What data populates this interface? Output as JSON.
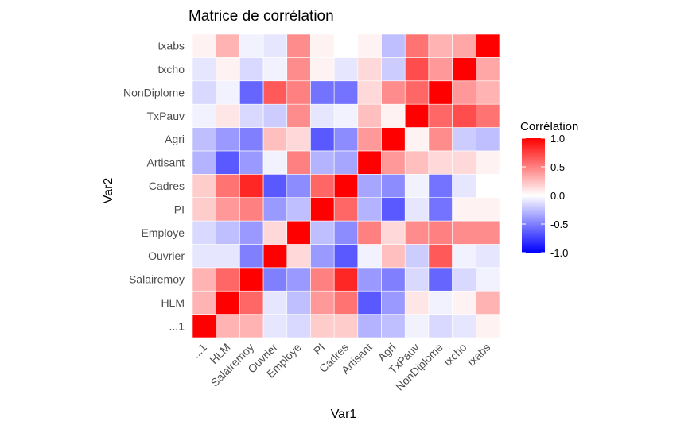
{
  "chart_data": {
    "type": "heatmap",
    "title": "Matrice de corrélation",
    "xlabel": "Var1",
    "ylabel": "Var2",
    "x_categories": [
      "...1",
      "HLM",
      "Salairemoy",
      "Ouvrier",
      "Employe",
      "PI",
      "Cadres",
      "Artisant",
      "Agri",
      "TxPauv",
      "NonDiplome",
      "txcho",
      "txabs"
    ],
    "y_categories": [
      "...1",
      "HLM",
      "Salairemoy",
      "Ouvrier",
      "Employe",
      "PI",
      "Cadres",
      "Artisant",
      "Agri",
      "TxPauv",
      "NonDiplome",
      "txcho",
      "txabs"
    ],
    "values": [
      [
        1.0,
        0.3,
        0.3,
        -0.1,
        -0.15,
        0.2,
        0.2,
        -0.3,
        -0.25,
        -0.05,
        -0.15,
        -0.1,
        0.05
      ],
      [
        0.3,
        1.0,
        0.6,
        -0.1,
        -0.25,
        0.4,
        0.55,
        -0.65,
        -0.4,
        0.1,
        -0.05,
        0.05,
        0.3
      ],
      [
        0.3,
        0.6,
        1.0,
        -0.5,
        -0.4,
        0.5,
        0.85,
        -0.4,
        -0.5,
        -0.15,
        -0.6,
        -0.15,
        -0.05
      ],
      [
        -0.1,
        -0.1,
        -0.5,
        1.0,
        0.15,
        -0.4,
        -0.65,
        -0.05,
        0.25,
        -0.2,
        0.65,
        -0.05,
        -0.1
      ],
      [
        -0.15,
        -0.25,
        -0.4,
        0.15,
        1.0,
        -0.25,
        -0.45,
        0.5,
        0.15,
        0.45,
        0.5,
        0.45,
        0.45
      ],
      [
        0.2,
        0.4,
        0.5,
        -0.4,
        -0.25,
        1.0,
        0.6,
        -0.3,
        -0.65,
        -0.1,
        -0.55,
        0.05,
        0.05
      ],
      [
        0.2,
        0.55,
        0.85,
        -0.65,
        -0.45,
        0.6,
        1.0,
        -0.35,
        -0.45,
        -0.05,
        -0.55,
        -0.1,
        0.0
      ],
      [
        -0.3,
        -0.65,
        -0.4,
        -0.05,
        0.5,
        -0.3,
        -0.35,
        1.0,
        0.4,
        0.25,
        0.15,
        0.15,
        0.05
      ],
      [
        -0.25,
        -0.4,
        -0.5,
        0.25,
        0.15,
        -0.65,
        -0.45,
        0.4,
        1.0,
        0.05,
        0.45,
        -0.2,
        -0.25
      ],
      [
        -0.05,
        0.1,
        -0.15,
        -0.2,
        0.45,
        -0.1,
        -0.05,
        0.25,
        0.05,
        1.0,
        0.6,
        0.7,
        0.55
      ],
      [
        -0.15,
        -0.05,
        -0.6,
        0.65,
        0.5,
        -0.55,
        -0.55,
        0.15,
        0.45,
        0.6,
        1.0,
        0.4,
        0.3
      ],
      [
        -0.1,
        0.05,
        -0.15,
        -0.05,
        0.45,
        0.05,
        -0.1,
        0.15,
        -0.2,
        0.7,
        0.4,
        1.0,
        0.35
      ],
      [
        0.05,
        0.3,
        -0.05,
        -0.1,
        0.45,
        0.05,
        0.0,
        0.05,
        -0.25,
        0.55,
        0.3,
        0.35,
        1.0
      ]
    ],
    "scale": {
      "low": "#0000ff",
      "mid": "#ffffff",
      "high": "#ff0000",
      "range": [
        -1,
        1
      ]
    },
    "grid": false,
    "legend": {
      "title": "Corrélation",
      "placement": "right",
      "ticks": [
        "1.0",
        "0.5",
        "0.0",
        "-0.5",
        "-1.0"
      ],
      "tick_values": [
        1.0,
        0.5,
        0.0,
        -0.5,
        -1.0
      ]
    }
  }
}
